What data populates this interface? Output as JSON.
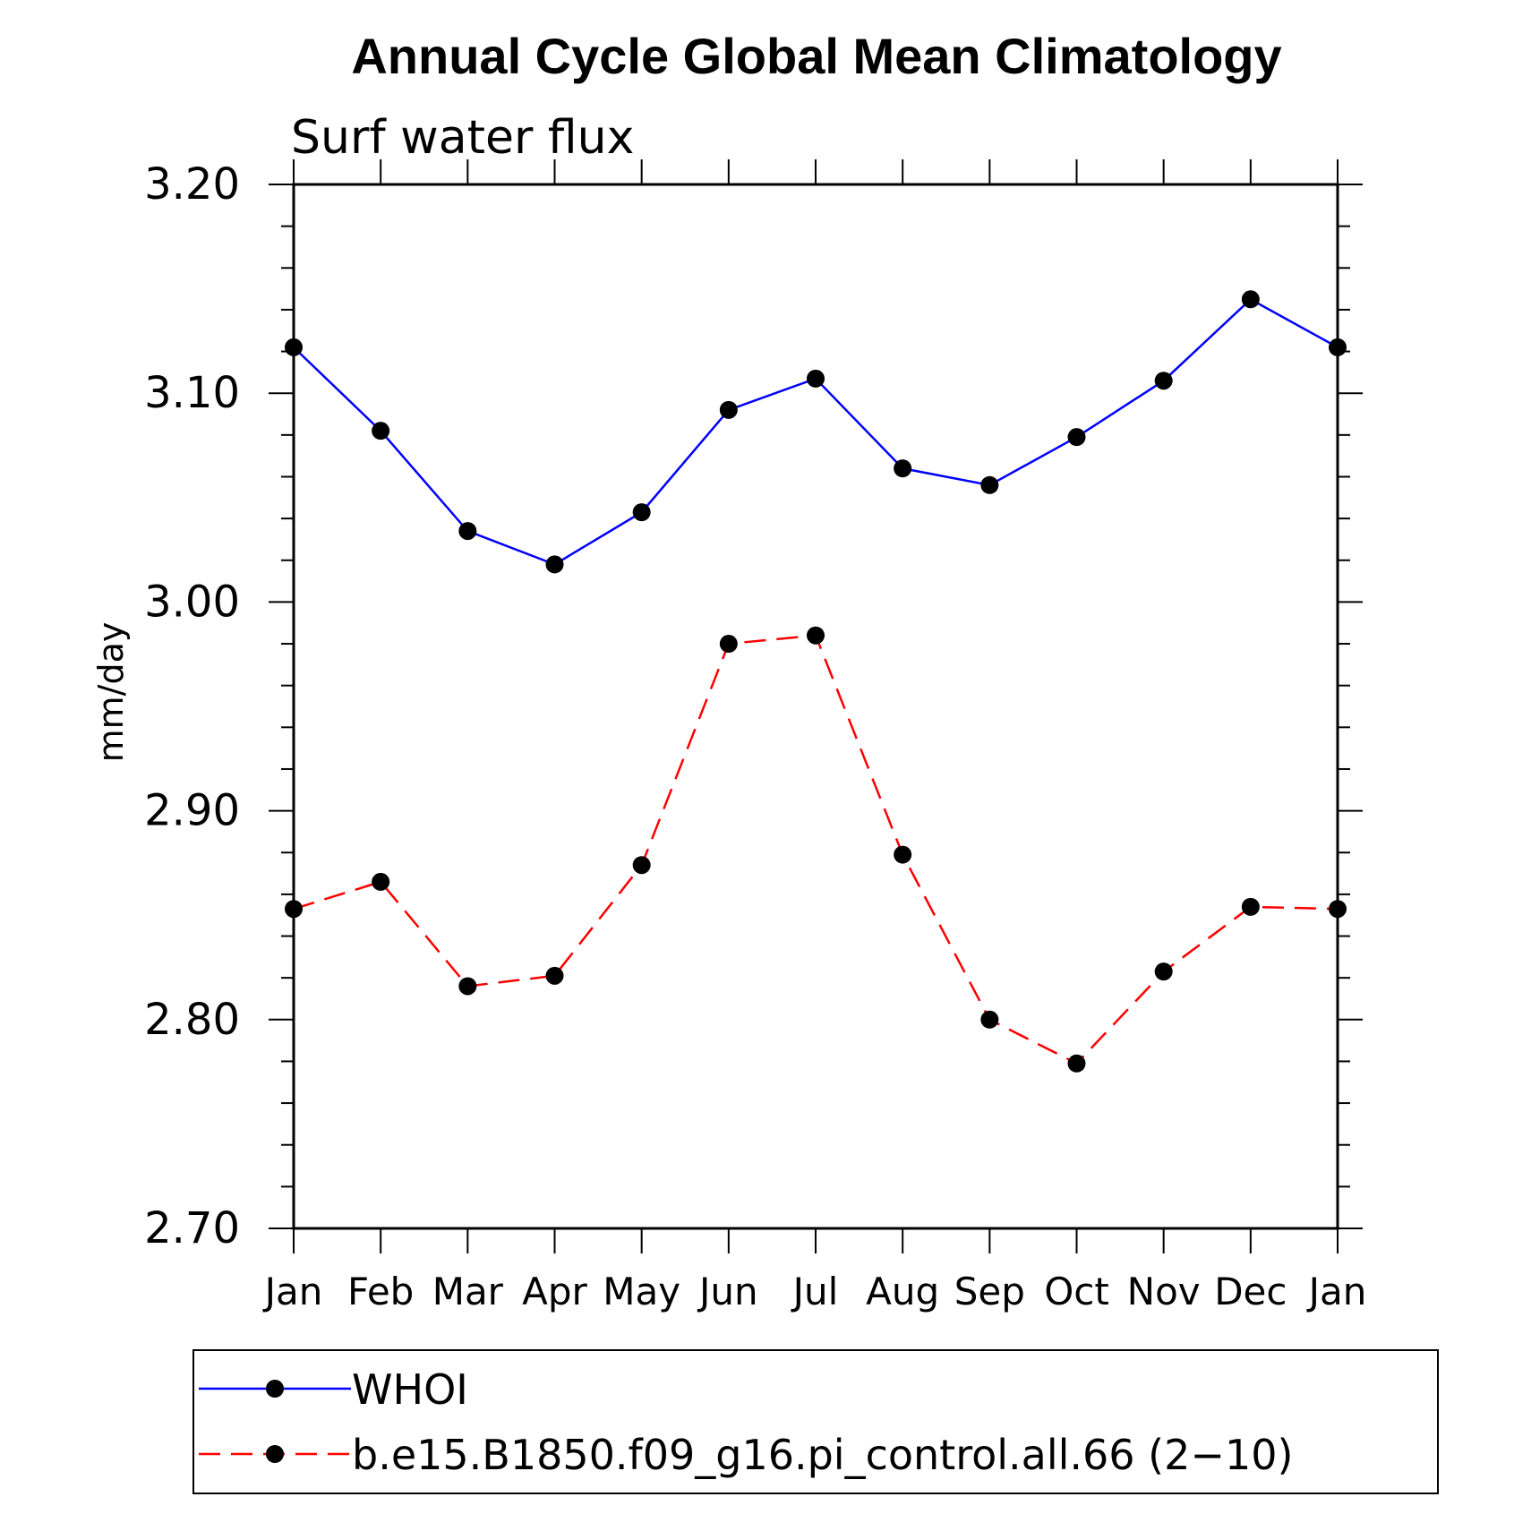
{
  "chart_data": {
    "type": "line",
    "title": "Annual Cycle Global Mean Climatology",
    "subtitle": "Surf water flux",
    "xlabel": "",
    "ylabel": "mm/day",
    "ylim": [
      2.7,
      3.2
    ],
    "yticks": [
      "3.20",
      "3.10",
      "3.00",
      "2.90",
      "2.80",
      "2.70"
    ],
    "ytick_values": [
      3.2,
      3.1,
      3.0,
      2.9,
      2.8,
      2.7
    ],
    "categories": [
      "Jan",
      "Feb",
      "Mar",
      "Apr",
      "May",
      "Jun",
      "Jul",
      "Aug",
      "Sep",
      "Oct",
      "Nov",
      "Dec",
      "Jan"
    ],
    "legend_position": "bottom",
    "series": [
      {
        "name": "WHOI",
        "color": "#0000ff",
        "style": "solid",
        "values": [
          3.122,
          3.082,
          3.034,
          3.018,
          3.043,
          3.092,
          3.107,
          3.064,
          3.056,
          3.079,
          3.106,
          3.145,
          3.122
        ]
      },
      {
        "name": "b.e15.B1850.f09_g16.pi_control.all.66 (2−10)",
        "color": "#ff0000",
        "style": "dashed",
        "values": [
          2.853,
          2.866,
          2.816,
          2.821,
          2.874,
          2.98,
          2.984,
          2.879,
          2.8,
          2.779,
          2.823,
          2.854,
          2.853
        ]
      }
    ]
  }
}
